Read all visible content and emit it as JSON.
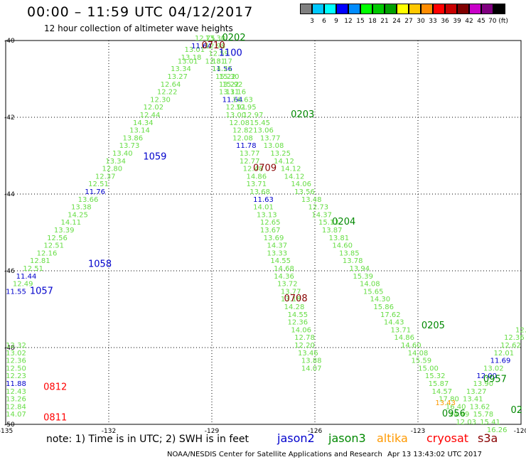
{
  "header": {
    "title": "00:00 – 11:59 UTC 04/12/2017",
    "subtitle": "12 hour collection of altimeter wave heights"
  },
  "colors": {
    "jason2": "#0000cc",
    "jason3": "#008800",
    "altika": "#ff9900",
    "cryosat": "#ff0000",
    "s3a": "#880000",
    "swh_light_green": "#66dd44"
  },
  "color_scale": {
    "labels": [
      "3",
      "6",
      "9",
      "12",
      "15",
      "18",
      "21",
      "24",
      "27",
      "30",
      "33",
      "36",
      "39",
      "42",
      "45",
      "70 (ft)"
    ],
    "colors": [
      "#808080",
      "#00c8ff",
      "#00ffff",
      "#0000ff",
      "#008cff",
      "#00ff00",
      "#00c800",
      "#00a000",
      "#ffff00",
      "#ffc800",
      "#ff8c00",
      "#ff0000",
      "#c80000",
      "#800000",
      "#c800c8",
      "#800080",
      "#000000"
    ]
  },
  "footer": {
    "note": "note: 1) Time is in UTC; 2) SWH is in feet",
    "sats": [
      {
        "label": "jason2",
        "color": "#0000cc"
      },
      {
        "label": "jason3",
        "color": "#008800"
      },
      {
        "label": "altika",
        "color": "#ff9900"
      },
      {
        "label": "cryosat",
        "color": "#ff0000"
      },
      {
        "label": "s3a",
        "color": "#880000"
      }
    ],
    "credit": "NOAA/NESDIS Center for Satellite Applications and Research",
    "stamp": "Apr 13 13:43:02 UTC 2017"
  },
  "chart_data": {
    "type": "scatter",
    "xlim": [
      -135,
      -120
    ],
    "ylim": [
      -50,
      -40
    ],
    "xticks": [
      -135,
      -132,
      -129,
      -126,
      -123,
      -120
    ],
    "yticks": [
      -40,
      -42,
      -44,
      -46,
      -48,
      -50
    ],
    "xtick_labels": [
      "-135",
      "-132",
      "-129",
      "-126",
      "-123",
      "-120"
    ],
    "ytick_labels": [
      "-40",
      "-42",
      "-44",
      "-46",
      "-48",
      "-50"
    ],
    "grid": true,
    "pass_labels": [
      {
        "text": "0202",
        "x": -128.7,
        "y": -40.0,
        "color": "jason3"
      },
      {
        "text": "0710",
        "x": -129.3,
        "y": -40.2,
        "color": "s3a"
      },
      {
        "text": "1100",
        "x": -128.8,
        "y": -40.4,
        "color": "jason2"
      },
      {
        "text": "0203",
        "x": -126.7,
        "y": -42.0,
        "color": "jason3"
      },
      {
        "text": "1059",
        "x": -131.0,
        "y": -43.1,
        "color": "jason2"
      },
      {
        "text": "0709",
        "x": -127.8,
        "y": -43.4,
        "color": "s3a"
      },
      {
        "text": "0204",
        "x": -125.5,
        "y": -44.8,
        "color": "jason3"
      },
      {
        "text": "1058",
        "x": -132.6,
        "y": -45.9,
        "color": "jason2"
      },
      {
        "text": "1057",
        "x": -134.3,
        "y": -46.6,
        "color": "jason2"
      },
      {
        "text": "0708",
        "x": -126.9,
        "y": -46.8,
        "color": "s3a"
      },
      {
        "text": "0205",
        "x": -122.9,
        "y": -47.5,
        "color": "jason3"
      },
      {
        "text": "0812",
        "x": -133.9,
        "y": -49.1,
        "color": "cryosat"
      },
      {
        "text": "0957",
        "x": -121.1,
        "y": -48.9,
        "color": "jason3"
      },
      {
        "text": "0956",
        "x": -122.3,
        "y": -49.8,
        "color": "jason3"
      },
      {
        "text": "0811",
        "x": -133.9,
        "y": -49.9,
        "color": "cryosat"
      },
      {
        "text": "02",
        "x": -120.3,
        "y": -49.7,
        "color": "jason3"
      }
    ],
    "series": [
      {
        "name": "jason2 1057-1100",
        "color": "swh_light_green",
        "points": [
          {
            "x": -134.7,
            "y": -46.6,
            "v": "11.55",
            "c": "jason2"
          },
          {
            "x": -134.5,
            "y": -46.4,
            "v": "12.49"
          },
          {
            "x": -134.4,
            "y": -46.2,
            "v": "11.44",
            "c": "jason2"
          },
          {
            "x": -134.2,
            "y": -46.0,
            "v": "12.51"
          },
          {
            "x": -134.0,
            "y": -45.8,
            "v": "12.81"
          },
          {
            "x": -133.8,
            "y": -45.6,
            "v": "12.16"
          },
          {
            "x": -133.6,
            "y": -45.4,
            "v": "12.51"
          },
          {
            "x": -133.5,
            "y": -45.2,
            "v": "12.56"
          },
          {
            "x": -133.3,
            "y": -45.0,
            "v": "13.39"
          },
          {
            "x": -133.1,
            "y": -44.8,
            "v": "14.11"
          },
          {
            "x": -132.9,
            "y": -44.6,
            "v": "14.25"
          },
          {
            "x": -132.8,
            "y": -44.4,
            "v": "13.38"
          },
          {
            "x": -132.6,
            "y": -44.2,
            "v": "13.66"
          },
          {
            "x": -132.4,
            "y": -44.0,
            "v": "11.76",
            "c": "jason2"
          },
          {
            "x": -132.3,
            "y": -43.8,
            "v": "12.51"
          },
          {
            "x": -132.1,
            "y": -43.6,
            "v": "12.37"
          },
          {
            "x": -131.9,
            "y": -43.4,
            "v": "12.80"
          },
          {
            "x": -131.8,
            "y": -43.2,
            "v": "13.34"
          },
          {
            "x": -131.6,
            "y": -43.0,
            "v": "13.40"
          },
          {
            "x": -131.4,
            "y": -42.8,
            "v": "13.73"
          },
          {
            "x": -131.3,
            "y": -42.6,
            "v": "13.86"
          },
          {
            "x": -131.1,
            "y": -42.4,
            "v": "13.14"
          },
          {
            "x": -131.0,
            "y": -42.2,
            "v": "14.34"
          },
          {
            "x": -130.8,
            "y": -42.0,
            "v": "12.44"
          },
          {
            "x": -130.7,
            "y": -41.8,
            "v": "12.02"
          },
          {
            "x": -130.5,
            "y": -41.6,
            "v": "12.30"
          },
          {
            "x": -130.3,
            "y": -41.4,
            "v": "12.22"
          },
          {
            "x": -130.2,
            "y": -41.2,
            "v": "12.64"
          },
          {
            "x": -130.0,
            "y": -41.0,
            "v": "13.27"
          },
          {
            "x": -129.9,
            "y": -40.8,
            "v": "13.34"
          },
          {
            "x": -129.7,
            "y": -40.6,
            "v": "13.01"
          },
          {
            "x": -129.6,
            "y": -40.5,
            "v": "13.18"
          },
          {
            "x": -129.5,
            "y": -40.3,
            "v": "13.01"
          },
          {
            "x": -129.3,
            "y": -40.2,
            "v": "11.64",
            "c": "jason2"
          },
          {
            "x": -129.2,
            "y": -40.0,
            "v": "12.75"
          }
        ]
      },
      {
        "name": "s3a 0708-0710",
        "color": "swh_light_green",
        "points": [
          {
            "x": -128.9,
            "y": -40.0,
            "v": "13.30"
          },
          {
            "x": -128.9,
            "y": -40.2,
            "v": "12.98"
          },
          {
            "x": -128.8,
            "y": -40.4,
            "v": "12.59"
          },
          {
            "x": -128.7,
            "y": -40.6,
            "v": "13.17"
          },
          {
            "x": -128.7,
            "y": -40.8,
            "v": "11.56",
            "c": "jason2"
          },
          {
            "x": -128.6,
            "y": -41.0,
            "v": "15.22"
          },
          {
            "x": -128.5,
            "y": -41.2,
            "v": "13.22"
          },
          {
            "x": -128.5,
            "y": -41.4,
            "v": "13.31"
          },
          {
            "x": -128.4,
            "y": -41.6,
            "v": "11.64",
            "c": "jason2"
          },
          {
            "x": -128.3,
            "y": -41.8,
            "v": "12.91"
          },
          {
            "x": -128.3,
            "y": -42.0,
            "v": "13.00"
          },
          {
            "x": -128.2,
            "y": -42.2,
            "v": "12.08"
          },
          {
            "x": -128.1,
            "y": -42.4,
            "v": "12.82"
          },
          {
            "x": -128.1,
            "y": -42.6,
            "v": "12.08"
          },
          {
            "x": -128.0,
            "y": -42.8,
            "v": "11.78",
            "c": "jason2"
          },
          {
            "x": -127.9,
            "y": -43.0,
            "v": "13.77"
          },
          {
            "x": -127.9,
            "y": -43.2,
            "v": "12.77"
          },
          {
            "x": -127.8,
            "y": -43.4,
            "v": "12.48"
          },
          {
            "x": -127.7,
            "y": -43.6,
            "v": "14.86"
          },
          {
            "x": -127.7,
            "y": -43.8,
            "v": "13.71"
          },
          {
            "x": -127.6,
            "y": -44.0,
            "v": "13.68"
          },
          {
            "x": -127.5,
            "y": -44.2,
            "v": "11.63",
            "c": "jason2"
          },
          {
            "x": -127.5,
            "y": -44.4,
            "v": "14.01"
          },
          {
            "x": -127.4,
            "y": -44.6,
            "v": "13.13"
          },
          {
            "x": -127.3,
            "y": -44.8,
            "v": "12.65"
          },
          {
            "x": -127.3,
            "y": -45.0,
            "v": "13.67"
          },
          {
            "x": -127.2,
            "y": -45.2,
            "v": "13.69"
          },
          {
            "x": -127.1,
            "y": -45.4,
            "v": "14.37"
          },
          {
            "x": -127.1,
            "y": -45.6,
            "v": "13.33"
          },
          {
            "x": -127.0,
            "y": -45.8,
            "v": "14.55"
          },
          {
            "x": -126.9,
            "y": -46.0,
            "v": "14.68"
          },
          {
            "x": -126.9,
            "y": -46.2,
            "v": "14.36"
          },
          {
            "x": -126.8,
            "y": -46.4,
            "v": "13.72"
          },
          {
            "x": -126.7,
            "y": -46.6,
            "v": "13.77"
          },
          {
            "x": -126.7,
            "y": -46.8,
            "v": "13.18"
          },
          {
            "x": -126.6,
            "y": -47.0,
            "v": "14.28"
          },
          {
            "x": -126.5,
            "y": -47.2,
            "v": "14.55"
          },
          {
            "x": -126.5,
            "y": -47.4,
            "v": "12.36"
          },
          {
            "x": -126.4,
            "y": -47.6,
            "v": "14.06"
          },
          {
            "x": -126.3,
            "y": -47.8,
            "v": "12.78"
          },
          {
            "x": -126.3,
            "y": -48.0,
            "v": "12.20"
          },
          {
            "x": -126.2,
            "y": -48.2,
            "v": "13.46"
          },
          {
            "x": -126.1,
            "y": -48.4,
            "v": "13.88"
          },
          {
            "x": -126.1,
            "y": -48.6,
            "v": "14.07"
          }
        ]
      },
      {
        "name": "jason3 0202-0205",
        "color": "swh_light_green",
        "points": [
          {
            "x": -128.9,
            "y": -40.6,
            "v": "12.81"
          },
          {
            "x": -128.7,
            "y": -40.8,
            "v": "14.21"
          },
          {
            "x": -128.5,
            "y": -41.0,
            "v": "15.30"
          },
          {
            "x": -128.4,
            "y": -41.2,
            "v": "15.92"
          },
          {
            "x": -128.3,
            "y": -41.4,
            "v": "11.16"
          },
          {
            "x": -128.1,
            "y": -41.6,
            "v": "16.63"
          },
          {
            "x": -128.0,
            "y": -41.8,
            "v": "12.95"
          },
          {
            "x": -127.8,
            "y": -42.0,
            "v": "12.97"
          },
          {
            "x": -127.6,
            "y": -42.2,
            "v": "15.45"
          },
          {
            "x": -127.5,
            "y": -42.4,
            "v": "13.06"
          },
          {
            "x": -127.3,
            "y": -42.6,
            "v": "13.77"
          },
          {
            "x": -127.2,
            "y": -42.8,
            "v": "13.08"
          },
          {
            "x": -127.0,
            "y": -43.0,
            "v": "13.25"
          },
          {
            "x": -126.9,
            "y": -43.2,
            "v": "14.12"
          },
          {
            "x": -126.7,
            "y": -43.4,
            "v": "14.12"
          },
          {
            "x": -126.6,
            "y": -43.6,
            "v": "14.12"
          },
          {
            "x": -126.4,
            "y": -43.8,
            "v": "14.06"
          },
          {
            "x": -126.3,
            "y": -44.0,
            "v": "13.56"
          },
          {
            "x": -126.1,
            "y": -44.2,
            "v": "13.48"
          },
          {
            "x": -125.9,
            "y": -44.4,
            "v": "12.73"
          },
          {
            "x": -125.8,
            "y": -44.6,
            "v": "14.37"
          },
          {
            "x": -125.6,
            "y": -44.8,
            "v": "15.13"
          },
          {
            "x": -125.5,
            "y": -45.0,
            "v": "13.87"
          },
          {
            "x": -125.3,
            "y": -45.2,
            "v": "13.81"
          },
          {
            "x": -125.2,
            "y": -45.4,
            "v": "14.60"
          },
          {
            "x": -125.0,
            "y": -45.6,
            "v": "13.85"
          },
          {
            "x": -124.9,
            "y": -45.8,
            "v": "13.78"
          },
          {
            "x": -124.7,
            "y": -46.0,
            "v": "13.94"
          },
          {
            "x": -124.6,
            "y": -46.2,
            "v": "15.39"
          },
          {
            "x": -124.4,
            "y": -46.4,
            "v": "14.08"
          },
          {
            "x": -124.3,
            "y": -46.6,
            "v": "15.65"
          },
          {
            "x": -124.1,
            "y": -46.8,
            "v": "14.30"
          },
          {
            "x": -124.0,
            "y": -47.0,
            "v": "15.86"
          },
          {
            "x": -123.8,
            "y": -47.2,
            "v": "17.62"
          },
          {
            "x": -123.7,
            "y": -47.4,
            "v": "14.43"
          },
          {
            "x": -123.5,
            "y": -47.6,
            "v": "13.71"
          },
          {
            "x": -123.4,
            "y": -47.8,
            "v": "14.86"
          },
          {
            "x": -123.2,
            "y": -48.0,
            "v": "14.60"
          },
          {
            "x": -123.0,
            "y": -48.2,
            "v": "14.08"
          },
          {
            "x": -122.9,
            "y": -48.4,
            "v": "15.59"
          },
          {
            "x": -122.7,
            "y": -48.6,
            "v": "15.00"
          },
          {
            "x": -122.5,
            "y": -48.8,
            "v": "15.32"
          },
          {
            "x": -122.4,
            "y": -49.0,
            "v": "15.87"
          },
          {
            "x": -122.3,
            "y": -49.2,
            "v": "14.57"
          },
          {
            "x": -122.1,
            "y": -49.4,
            "v": "17.80"
          },
          {
            "x": -121.9,
            "y": -49.6,
            "v": "16.40"
          },
          {
            "x": -121.8,
            "y": -49.8,
            "v": "14.49"
          },
          {
            "x": -121.6,
            "y": -50.0,
            "v": "12.03"
          }
        ]
      },
      {
        "name": "jason3 0956-0957",
        "color": "swh_light_green",
        "points": [
          {
            "x": -120.0,
            "y": -47.6,
            "v": "12."
          },
          {
            "x": -120.2,
            "y": -47.8,
            "v": "12.36"
          },
          {
            "x": -120.3,
            "y": -48.0,
            "v": "12.62"
          },
          {
            "x": -120.5,
            "y": -48.2,
            "v": "12.01"
          },
          {
            "x": -120.6,
            "y": -48.4,
            "v": "11.69",
            "c": "jason2"
          },
          {
            "x": -120.8,
            "y": -48.6,
            "v": "13.02"
          },
          {
            "x": -121.0,
            "y": -48.8,
            "v": "12.00",
            "c": "jason2"
          },
          {
            "x": -121.1,
            "y": -49.0,
            "v": "13.90"
          },
          {
            "x": -121.3,
            "y": -49.2,
            "v": "13.27"
          },
          {
            "x": -121.4,
            "y": -49.4,
            "v": "13.41"
          },
          {
            "x": -121.2,
            "y": -49.6,
            "v": "13.62"
          },
          {
            "x": -121.1,
            "y": -49.8,
            "v": "15.78"
          },
          {
            "x": -120.9,
            "y": -50.0,
            "v": "15.41"
          },
          {
            "x": -120.7,
            "y": -50.2,
            "v": "16.26"
          }
        ]
      },
      {
        "name": "cryosat 0811-0812",
        "color": "swh_light_green",
        "points": [
          {
            "x": -134.7,
            "y": -48.0,
            "v": "12.32"
          },
          {
            "x": -134.7,
            "y": -48.2,
            "v": "13.02"
          },
          {
            "x": -134.7,
            "y": -48.4,
            "v": "12.36"
          },
          {
            "x": -134.7,
            "y": -48.6,
            "v": "12.50"
          },
          {
            "x": -134.7,
            "y": -48.8,
            "v": "12.23"
          },
          {
            "x": -134.7,
            "y": -49.0,
            "v": "11.88",
            "c": "jason2"
          },
          {
            "x": -134.7,
            "y": -49.2,
            "v": "12.43"
          },
          {
            "x": -134.7,
            "y": -49.4,
            "v": "13.26"
          },
          {
            "x": -134.7,
            "y": -49.6,
            "v": "12.84"
          },
          {
            "x": -134.7,
            "y": -49.8,
            "v": "14.07"
          }
        ]
      },
      {
        "name": "altika",
        "color": "altika",
        "points": [
          {
            "x": -122.2,
            "y": -49.5,
            "v": "13.43"
          }
        ]
      }
    ]
  }
}
